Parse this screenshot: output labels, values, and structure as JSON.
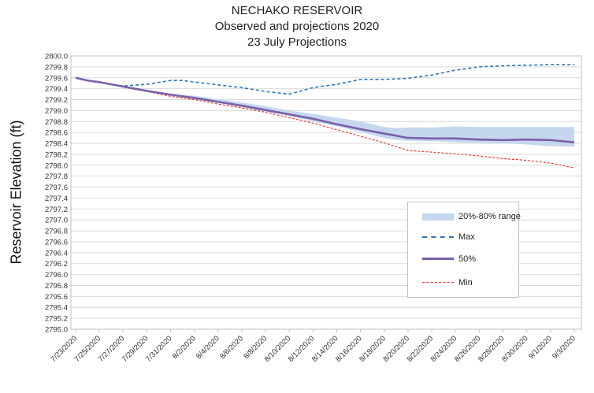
{
  "chart_data": {
    "type": "line",
    "title": "NECHAKO RESERVOIR",
    "subtitle": "Observed and projections 2020",
    "subtitle2": "23 July Projections",
    "xlabel": "",
    "ylabel": "Reservoir Elevation (ft)",
    "ylim": [
      2795.0,
      2800.0
    ],
    "ytick_step": 0.2,
    "ytick_labels": [
      "2800.0",
      "2799.8",
      "2799.6",
      "2799.4",
      "2799.2",
      "2799.0",
      "2798.8",
      "2798.6",
      "2798.4",
      "2798.2",
      "2798.0",
      "2797.8",
      "2797.6",
      "2797.4",
      "2797.2",
      "2797.0",
      "2796.8",
      "2796.6",
      "2796.4",
      "2796.2",
      "2796.0",
      "2795.8",
      "2795.6",
      "2795.4",
      "2795.2",
      "2795.0"
    ],
    "x_tick_labels": [
      "7/23/2020",
      "7/25/2020",
      "7/27/2020",
      "7/29/2020",
      "7/31/2020",
      "8/2/2020",
      "8/4/2020",
      "8/6/2020",
      "8/8/2020",
      "8/10/2020",
      "8/12/2020",
      "8/14/2020",
      "8/16/2020",
      "8/18/2020",
      "8/20/2020",
      "8/22/2020",
      "8/24/2020",
      "8/26/2020",
      "8/28/2020",
      "8/30/2020",
      "9/1/2020",
      "9/3/2020"
    ],
    "grid": true,
    "legend_position": "right",
    "colors": {
      "band": "#c5d7ef",
      "max": "#2f75b5",
      "p50": "#7b5fa8",
      "min": "#e8332a",
      "grid": "#d9d9d9",
      "axis": "#bfbfbf"
    },
    "series": [
      {
        "name": "20%-80% range",
        "kind": "band",
        "points": [
          {
            "day": 0,
            "low": 2799.6,
            "high": 2799.6
          },
          {
            "day": 1,
            "low": 2799.55,
            "high": 2799.55
          },
          {
            "day": 2,
            "low": 2799.52,
            "high": 2799.52
          },
          {
            "day": 4,
            "low": 2799.44,
            "high": 2799.44
          },
          {
            "day": 6,
            "low": 2799.36,
            "high": 2799.37
          },
          {
            "day": 8,
            "low": 2799.29,
            "high": 2799.31
          },
          {
            "day": 10,
            "low": 2799.22,
            "high": 2799.27
          },
          {
            "day": 12,
            "low": 2799.14,
            "high": 2799.21
          },
          {
            "day": 14,
            "low": 2799.06,
            "high": 2799.15
          },
          {
            "day": 16,
            "low": 2798.98,
            "high": 2799.08
          },
          {
            "day": 18,
            "low": 2798.9,
            "high": 2799.0
          },
          {
            "day": 20,
            "low": 2798.8,
            "high": 2798.94
          },
          {
            "day": 22,
            "low": 2798.71,
            "high": 2798.87
          },
          {
            "day": 24,
            "low": 2798.61,
            "high": 2798.8
          },
          {
            "day": 26,
            "low": 2798.5,
            "high": 2798.7
          },
          {
            "day": 27,
            "low": 2798.46,
            "high": 2798.68
          },
          {
            "day": 28,
            "low": 2798.45,
            "high": 2798.69
          },
          {
            "day": 30,
            "low": 2798.44,
            "high": 2798.69
          },
          {
            "day": 32,
            "low": 2798.42,
            "high": 2798.71
          },
          {
            "day": 34,
            "low": 2798.41,
            "high": 2798.7
          },
          {
            "day": 36,
            "low": 2798.4,
            "high": 2798.7
          },
          {
            "day": 38,
            "low": 2798.38,
            "high": 2798.7
          },
          {
            "day": 40,
            "low": 2798.35,
            "high": 2798.7
          },
          {
            "day": 42,
            "low": 2798.34,
            "high": 2798.7
          }
        ]
      },
      {
        "name": "Max",
        "kind": "line",
        "style": "dashed",
        "points": [
          {
            "day": 0,
            "value": 2799.6
          },
          {
            "day": 1,
            "value": 2799.55
          },
          {
            "day": 2,
            "value": 2799.52
          },
          {
            "day": 4,
            "value": 2799.45
          },
          {
            "day": 6,
            "value": 2799.48
          },
          {
            "day": 8,
            "value": 2799.55
          },
          {
            "day": 9,
            "value": 2799.55
          },
          {
            "day": 12,
            "value": 2799.47
          },
          {
            "day": 14,
            "value": 2799.42
          },
          {
            "day": 16,
            "value": 2799.35
          },
          {
            "day": 18,
            "value": 2799.3
          },
          {
            "day": 20,
            "value": 2799.42
          },
          {
            "day": 22,
            "value": 2799.48
          },
          {
            "day": 24,
            "value": 2799.57
          },
          {
            "day": 26,
            "value": 2799.57
          },
          {
            "day": 28,
            "value": 2799.59
          },
          {
            "day": 30,
            "value": 2799.65
          },
          {
            "day": 32,
            "value": 2799.74
          },
          {
            "day": 34,
            "value": 2799.8
          },
          {
            "day": 36,
            "value": 2799.82
          },
          {
            "day": 38,
            "value": 2799.83
          },
          {
            "day": 40,
            "value": 2799.84
          },
          {
            "day": 42,
            "value": 2799.84
          }
        ]
      },
      {
        "name": "50%",
        "kind": "line",
        "style": "solid",
        "points": [
          {
            "day": 0,
            "value": 2799.6
          },
          {
            "day": 1,
            "value": 2799.55
          },
          {
            "day": 2,
            "value": 2799.52
          },
          {
            "day": 4,
            "value": 2799.44
          },
          {
            "day": 6,
            "value": 2799.36
          },
          {
            "day": 8,
            "value": 2799.29
          },
          {
            "day": 10,
            "value": 2799.23
          },
          {
            "day": 12,
            "value": 2799.16
          },
          {
            "day": 14,
            "value": 2799.09
          },
          {
            "day": 16,
            "value": 2799.01
          },
          {
            "day": 18,
            "value": 2798.93
          },
          {
            "day": 20,
            "value": 2798.85
          },
          {
            "day": 22,
            "value": 2798.75
          },
          {
            "day": 24,
            "value": 2798.66
          },
          {
            "day": 26,
            "value": 2798.58
          },
          {
            "day": 28,
            "value": 2798.5
          },
          {
            "day": 30,
            "value": 2798.49
          },
          {
            "day": 32,
            "value": 2798.49
          },
          {
            "day": 34,
            "value": 2798.47
          },
          {
            "day": 36,
            "value": 2798.46
          },
          {
            "day": 38,
            "value": 2798.47
          },
          {
            "day": 40,
            "value": 2798.46
          },
          {
            "day": 42,
            "value": 2798.42
          }
        ]
      },
      {
        "name": "Min",
        "kind": "line",
        "style": "dotted",
        "points": [
          {
            "day": 0,
            "value": 2799.6
          },
          {
            "day": 1,
            "value": 2799.55
          },
          {
            "day": 2,
            "value": 2799.52
          },
          {
            "day": 4,
            "value": 2799.43
          },
          {
            "day": 6,
            "value": 2799.35
          },
          {
            "day": 8,
            "value": 2799.26
          },
          {
            "day": 10,
            "value": 2799.2
          },
          {
            "day": 12,
            "value": 2799.12
          },
          {
            "day": 14,
            "value": 2799.05
          },
          {
            "day": 16,
            "value": 2798.97
          },
          {
            "day": 18,
            "value": 2798.87
          },
          {
            "day": 20,
            "value": 2798.77
          },
          {
            "day": 22,
            "value": 2798.65
          },
          {
            "day": 24,
            "value": 2798.53
          },
          {
            "day": 26,
            "value": 2798.41
          },
          {
            "day": 28,
            "value": 2798.27
          },
          {
            "day": 30,
            "value": 2798.24
          },
          {
            "day": 32,
            "value": 2798.21
          },
          {
            "day": 34,
            "value": 2798.17
          },
          {
            "day": 36,
            "value": 2798.12
          },
          {
            "day": 38,
            "value": 2798.09
          },
          {
            "day": 40,
            "value": 2798.04
          },
          {
            "day": 42,
            "value": 2797.95
          }
        ]
      }
    ]
  }
}
